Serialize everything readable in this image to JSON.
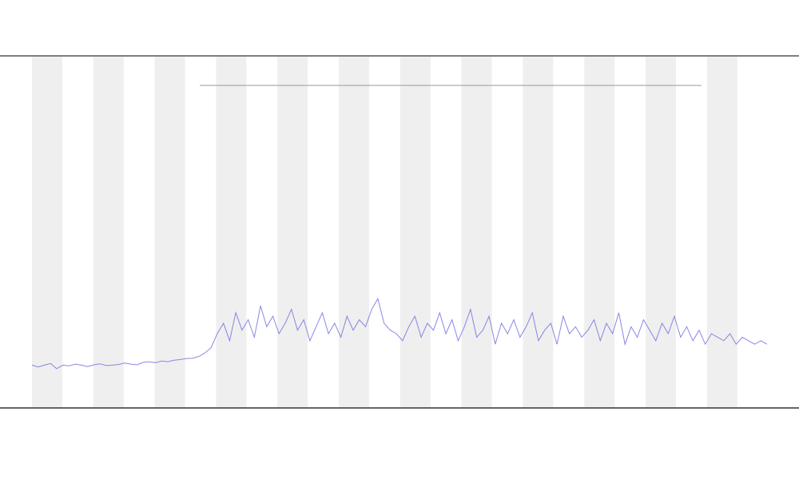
{
  "chart_data": {
    "type": "line",
    "color": "#6a6ae0",
    "ylim": [
      0,
      100
    ],
    "values": [
      12,
      11.5,
      12,
      12.5,
      11,
      12,
      11.8,
      12.3,
      12,
      11.6,
      12.1,
      12.4,
      11.9,
      12,
      12.2,
      12.6,
      12.3,
      12.1,
      12.8,
      13,
      12.7,
      13.2,
      13,
      13.4,
      13.6,
      13.9,
      14,
      14.5,
      15.5,
      17,
      21,
      24,
      19,
      27,
      22,
      25,
      20,
      29,
      23,
      26,
      21,
      24,
      28,
      22,
      25,
      19,
      23,
      27,
      21,
      24,
      20,
      26,
      22,
      25,
      23,
      28,
      31,
      24,
      22,
      21,
      19,
      23,
      26,
      20,
      24,
      22,
      27,
      21,
      25,
      19,
      23,
      28,
      20,
      22,
      26,
      18,
      24,
      21,
      25,
      20,
      23,
      27,
      19,
      22,
      24,
      18,
      26,
      21,
      23,
      20,
      22,
      25,
      19,
      24,
      21,
      27,
      18,
      23,
      20,
      25,
      22,
      19,
      24,
      21,
      26,
      20,
      23,
      19,
      22,
      18,
      21,
      20,
      19,
      21,
      18,
      20,
      19,
      18,
      19,
      18
    ]
  }
}
